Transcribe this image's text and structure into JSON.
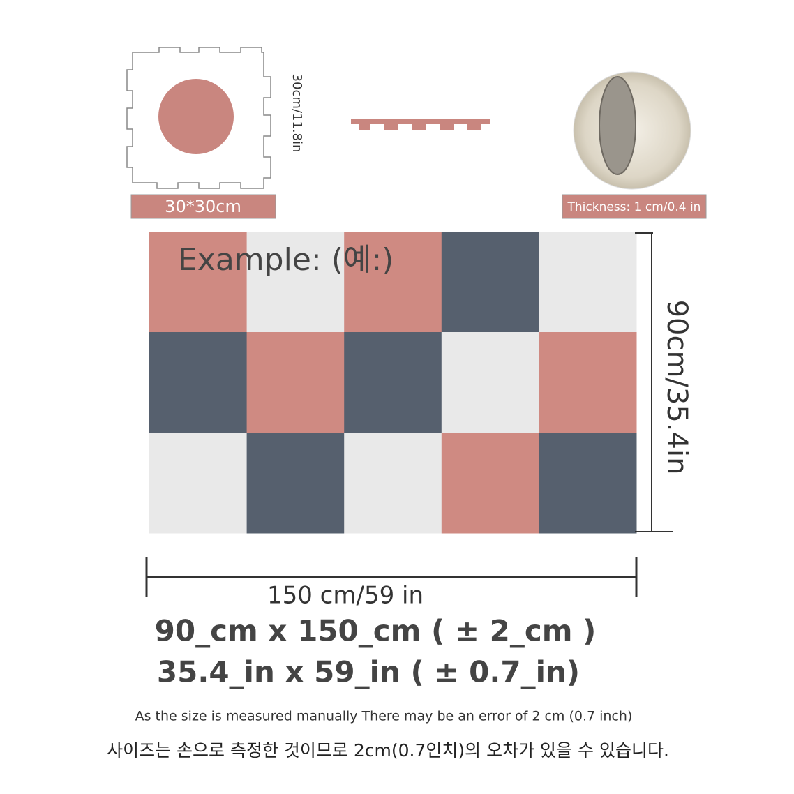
{
  "piece": {
    "side_label": "30cm/11.8in",
    "size_label": "30*30cm"
  },
  "thickness_label": "Thickness: 1 cm/0.4 in",
  "example_label": "Example: (예:)",
  "height_label": "90cm/35.4in",
  "width_label": "150 cm/59 in",
  "dimensions": [
    "90_cm x 150_cm ( ± 2_cm )",
    "35.4_in x 59_in ( ± 0.7_in)"
  ],
  "note_en": "As the size is measured manually There may be an error of 2 cm (0.7 inch)",
  "note_ko": "사이즈는 손으로 측정한 것이므로 2cm(0.7인치)의 오차가 있을 수 있습니다."
}
